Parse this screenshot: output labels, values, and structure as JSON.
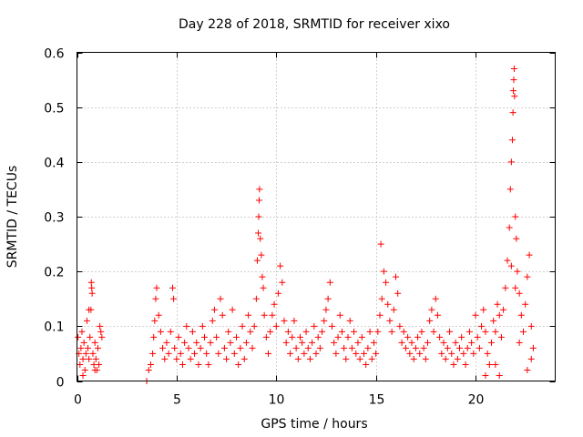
{
  "chart_data": {
    "type": "scatter",
    "title": "Day 228 of 2018, SRMTID for receiver xixo",
    "xlabel": "GPS time / hours",
    "ylabel": "SRMTID / TECUs",
    "xlim": [
      0,
      24
    ],
    "ylim": [
      0,
      0.6
    ],
    "xticks": [
      0,
      5,
      10,
      15,
      20
    ],
    "xtick_labels": [
      "0",
      "5",
      "10",
      "15",
      "20"
    ],
    "yticks": [
      0,
      0.1,
      0.2,
      0.3,
      0.4,
      0.5,
      0.6
    ],
    "ytick_labels": [
      "0",
      "0.1",
      "0.2",
      "0.3",
      "0.4",
      "0.5",
      "0.6"
    ],
    "grid": true,
    "marker": "plus",
    "marker_color": "#ff0000",
    "series": [
      {
        "name": "SRMTID",
        "points": [
          [
            0.05,
            0.08
          ],
          [
            0.1,
            0.05
          ],
          [
            0.15,
            0.03
          ],
          [
            0.2,
            0.06
          ],
          [
            0.25,
            0.09
          ],
          [
            0.3,
            0.04
          ],
          [
            0.35,
            0.07
          ],
          [
            0.4,
            0.02
          ],
          [
            0.45,
            0.05
          ],
          [
            0.5,
            0.11
          ],
          [
            0.55,
            0.06
          ],
          [
            0.6,
            0.04
          ],
          [
            0.65,
            0.08
          ],
          [
            0.7,
            0.13
          ],
          [
            0.72,
            0.18
          ],
          [
            0.74,
            0.17
          ],
          [
            0.76,
            0.16
          ],
          [
            0.8,
            0.05
          ],
          [
            0.85,
            0.03
          ],
          [
            0.9,
            0.07
          ],
          [
            0.95,
            0.04
          ],
          [
            1.0,
            0.02
          ],
          [
            1.05,
            0.06
          ],
          [
            1.1,
            0.03
          ],
          [
            1.15,
            0.1
          ],
          [
            1.2,
            0.09
          ],
          [
            1.25,
            0.08
          ],
          [
            0.6,
            0.13
          ],
          [
            0.3,
            0.01
          ],
          [
            0.9,
            0.02
          ],
          [
            3.5,
            0.0
          ],
          [
            3.6,
            0.02
          ],
          [
            3.7,
            0.03
          ],
          [
            3.8,
            0.05
          ],
          [
            3.85,
            0.08
          ],
          [
            3.9,
            0.11
          ],
          [
            3.95,
            0.15
          ],
          [
            4.0,
            0.17
          ],
          [
            4.1,
            0.12
          ],
          [
            4.2,
            0.09
          ],
          [
            4.3,
            0.06
          ],
          [
            4.4,
            0.04
          ],
          [
            4.5,
            0.07
          ],
          [
            4.6,
            0.05
          ],
          [
            4.7,
            0.09
          ],
          [
            4.8,
            0.17
          ],
          [
            4.85,
            0.15
          ],
          [
            4.9,
            0.06
          ],
          [
            5.0,
            0.04
          ],
          [
            5.1,
            0.08
          ],
          [
            5.2,
            0.05
          ],
          [
            5.3,
            0.03
          ],
          [
            5.4,
            0.07
          ],
          [
            5.5,
            0.1
          ],
          [
            5.6,
            0.06
          ],
          [
            5.7,
            0.04
          ],
          [
            5.8,
            0.09
          ],
          [
            5.9,
            0.05
          ],
          [
            6.0,
            0.07
          ],
          [
            6.1,
            0.03
          ],
          [
            6.2,
            0.06
          ],
          [
            6.3,
            0.1
          ],
          [
            6.4,
            0.08
          ],
          [
            6.5,
            0.05
          ],
          [
            6.6,
            0.03
          ],
          [
            6.7,
            0.07
          ],
          [
            6.8,
            0.11
          ],
          [
            6.9,
            0.13
          ],
          [
            7.0,
            0.08
          ],
          [
            7.1,
            0.05
          ],
          [
            7.2,
            0.15
          ],
          [
            7.3,
            0.12
          ],
          [
            7.4,
            0.06
          ],
          [
            7.5,
            0.04
          ],
          [
            7.6,
            0.09
          ],
          [
            7.7,
            0.07
          ],
          [
            7.8,
            0.13
          ],
          [
            7.9,
            0.05
          ],
          [
            8.0,
            0.08
          ],
          [
            8.1,
            0.03
          ],
          [
            8.2,
            0.06
          ],
          [
            8.3,
            0.1
          ],
          [
            8.4,
            0.04
          ],
          [
            8.5,
            0.07
          ],
          [
            8.6,
            0.12
          ],
          [
            8.7,
            0.09
          ],
          [
            8.8,
            0.06
          ],
          [
            8.9,
            0.1
          ],
          [
            9.0,
            0.15
          ],
          [
            9.05,
            0.22
          ],
          [
            9.1,
            0.27
          ],
          [
            9.12,
            0.3
          ],
          [
            9.14,
            0.33
          ],
          [
            9.16,
            0.35
          ],
          [
            9.2,
            0.26
          ],
          [
            9.25,
            0.23
          ],
          [
            9.3,
            0.19
          ],
          [
            9.35,
            0.17
          ],
          [
            9.4,
            0.12
          ],
          [
            9.5,
            0.08
          ],
          [
            9.6,
            0.05
          ],
          [
            9.7,
            0.09
          ],
          [
            9.8,
            0.12
          ],
          [
            9.9,
            0.14
          ],
          [
            10.0,
            0.1
          ],
          [
            10.1,
            0.16
          ],
          [
            10.2,
            0.21
          ],
          [
            10.3,
            0.18
          ],
          [
            10.4,
            0.11
          ],
          [
            10.5,
            0.07
          ],
          [
            10.6,
            0.09
          ],
          [
            10.7,
            0.05
          ],
          [
            10.8,
            0.08
          ],
          [
            10.9,
            0.11
          ],
          [
            11.0,
            0.06
          ],
          [
            11.1,
            0.04
          ],
          [
            11.2,
            0.08
          ],
          [
            11.3,
            0.07
          ],
          [
            11.4,
            0.05
          ],
          [
            11.5,
            0.09
          ],
          [
            11.6,
            0.06
          ],
          [
            11.7,
            0.04
          ],
          [
            11.8,
            0.07
          ],
          [
            11.9,
            0.1
          ],
          [
            12.0,
            0.05
          ],
          [
            12.1,
            0.08
          ],
          [
            12.2,
            0.06
          ],
          [
            12.3,
            0.09
          ],
          [
            12.4,
            0.11
          ],
          [
            12.5,
            0.13
          ],
          [
            12.6,
            0.15
          ],
          [
            12.7,
            0.18
          ],
          [
            12.8,
            0.1
          ],
          [
            12.9,
            0.07
          ],
          [
            13.0,
            0.05
          ],
          [
            13.1,
            0.08
          ],
          [
            13.2,
            0.12
          ],
          [
            13.3,
            0.09
          ],
          [
            13.4,
            0.06
          ],
          [
            13.5,
            0.04
          ],
          [
            13.6,
            0.08
          ],
          [
            13.7,
            0.11
          ],
          [
            13.8,
            0.06
          ],
          [
            13.9,
            0.09
          ],
          [
            14.0,
            0.05
          ],
          [
            14.1,
            0.07
          ],
          [
            14.2,
            0.04
          ],
          [
            14.3,
            0.08
          ],
          [
            14.4,
            0.05
          ],
          [
            14.5,
            0.03
          ],
          [
            14.6,
            0.06
          ],
          [
            14.7,
            0.09
          ],
          [
            14.8,
            0.04
          ],
          [
            14.9,
            0.07
          ],
          [
            15.0,
            0.05
          ],
          [
            15.1,
            0.09
          ],
          [
            15.2,
            0.12
          ],
          [
            15.25,
            0.25
          ],
          [
            15.3,
            0.15
          ],
          [
            15.4,
            0.2
          ],
          [
            15.5,
            0.18
          ],
          [
            15.6,
            0.14
          ],
          [
            15.7,
            0.11
          ],
          [
            15.8,
            0.09
          ],
          [
            15.9,
            0.13
          ],
          [
            16.0,
            0.19
          ],
          [
            16.1,
            0.16
          ],
          [
            16.2,
            0.1
          ],
          [
            16.3,
            0.07
          ],
          [
            16.4,
            0.09
          ],
          [
            16.5,
            0.06
          ],
          [
            16.6,
            0.08
          ],
          [
            16.7,
            0.05
          ],
          [
            16.8,
            0.07
          ],
          [
            16.9,
            0.04
          ],
          [
            17.0,
            0.06
          ],
          [
            17.1,
            0.08
          ],
          [
            17.2,
            0.05
          ],
          [
            17.3,
            0.09
          ],
          [
            17.4,
            0.06
          ],
          [
            17.5,
            0.04
          ],
          [
            17.6,
            0.07
          ],
          [
            17.7,
            0.11
          ],
          [
            17.8,
            0.13
          ],
          [
            17.9,
            0.09
          ],
          [
            18.0,
            0.15
          ],
          [
            18.1,
            0.12
          ],
          [
            18.2,
            0.08
          ],
          [
            18.3,
            0.05
          ],
          [
            18.4,
            0.07
          ],
          [
            18.5,
            0.04
          ],
          [
            18.6,
            0.06
          ],
          [
            18.7,
            0.09
          ],
          [
            18.8,
            0.05
          ],
          [
            18.9,
            0.03
          ],
          [
            19.0,
            0.07
          ],
          [
            19.1,
            0.04
          ],
          [
            19.2,
            0.06
          ],
          [
            19.3,
            0.08
          ],
          [
            19.4,
            0.05
          ],
          [
            19.5,
            0.03
          ],
          [
            19.6,
            0.06
          ],
          [
            19.7,
            0.09
          ],
          [
            19.8,
            0.07
          ],
          [
            19.9,
            0.05
          ],
          [
            20.0,
            0.12
          ],
          [
            20.1,
            0.08
          ],
          [
            20.2,
            0.06
          ],
          [
            20.3,
            0.1
          ],
          [
            20.4,
            0.13
          ],
          [
            20.5,
            0.09
          ],
          [
            20.6,
            0.05
          ],
          [
            20.7,
            0.03
          ],
          [
            20.8,
            0.07
          ],
          [
            20.9,
            0.11
          ],
          [
            21.0,
            0.09
          ],
          [
            21.1,
            0.14
          ],
          [
            21.2,
            0.12
          ],
          [
            21.3,
            0.08
          ],
          [
            21.4,
            0.13
          ],
          [
            21.5,
            0.17
          ],
          [
            21.6,
            0.22
          ],
          [
            21.7,
            0.28
          ],
          [
            21.75,
            0.35
          ],
          [
            21.8,
            0.4
          ],
          [
            21.85,
            0.44
          ],
          [
            21.88,
            0.49
          ],
          [
            21.9,
            0.53
          ],
          [
            21.92,
            0.55
          ],
          [
            21.94,
            0.57
          ],
          [
            21.96,
            0.52
          ],
          [
            22.0,
            0.3
          ],
          [
            22.05,
            0.26
          ],
          [
            22.1,
            0.2
          ],
          [
            22.2,
            0.16
          ],
          [
            22.3,
            0.12
          ],
          [
            22.4,
            0.09
          ],
          [
            22.5,
            0.14
          ],
          [
            22.6,
            0.19
          ],
          [
            22.7,
            0.23
          ],
          [
            22.8,
            0.1
          ],
          [
            22.9,
            0.06
          ],
          [
            21.2,
            0.01
          ],
          [
            21.0,
            0.03
          ],
          [
            20.5,
            0.01
          ],
          [
            22.6,
            0.02
          ],
          [
            22.8,
            0.04
          ],
          [
            22.2,
            0.07
          ],
          [
            22.0,
            0.17
          ],
          [
            21.8,
            0.21
          ]
        ]
      }
    ]
  }
}
